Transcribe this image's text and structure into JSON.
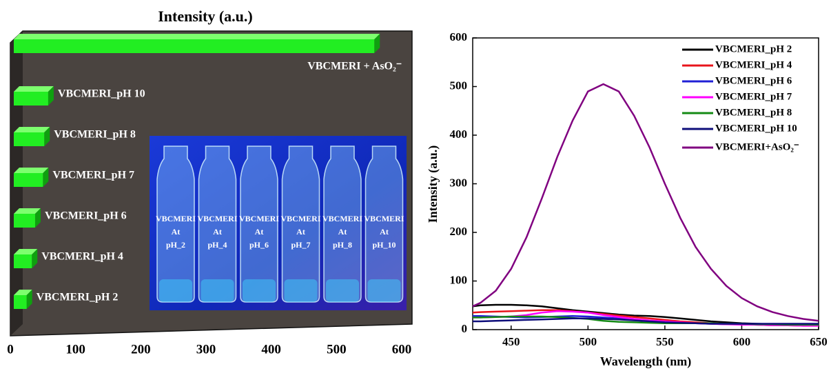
{
  "chart_data": [
    {
      "type": "bar",
      "orientation": "horizontal",
      "title": "Intensity (a.u.)",
      "categories": [
        "VBCMERI_pH 2",
        "VBCMERI_pH 4",
        "VBCMERI_pH 6",
        "VBCMERI_pH 7",
        "VBCMERI_pH 8",
        "VBCMERI_pH 10",
        "VBCMERI + AsO₂⁻"
      ],
      "values": [
        25,
        33,
        38,
        50,
        52,
        58,
        558
      ],
      "color": "#22ee22",
      "xlim": [
        0,
        600
      ],
      "xticks": [
        0,
        100,
        200,
        300,
        400,
        500,
        600
      ],
      "inset_labels": [
        [
          "VBCMERI",
          "At",
          "pH_2"
        ],
        [
          "VBCMERI",
          "At",
          "pH_4"
        ],
        [
          "VBCMERI",
          "At",
          "pH_6"
        ],
        [
          "VBCMERI",
          "At",
          "pH_7"
        ],
        [
          "VBCMERI",
          "At",
          "pH_8"
        ],
        [
          "VBCMERI",
          "At",
          "pH_10"
        ]
      ]
    },
    {
      "type": "line",
      "x_label": "Wavelength (nm)",
      "y_label": "Intensity (a.u.)",
      "x": [
        425,
        430,
        440,
        450,
        460,
        470,
        480,
        490,
        500,
        510,
        520,
        530,
        540,
        550,
        560,
        570,
        580,
        590,
        600,
        610,
        620,
        630,
        640,
        650
      ],
      "xlim": [
        425,
        650
      ],
      "xticks": [
        450,
        500,
        550,
        600,
        650
      ],
      "ylim": [
        0,
        600
      ],
      "yticks": [
        0,
        100,
        200,
        300,
        400,
        500,
        600
      ],
      "legend": "upper right",
      "series": [
        {
          "name": "VBCMERI_pH 2",
          "color": "#000000",
          "values": [
            48,
            50,
            51,
            51,
            50,
            48,
            44,
            40,
            37,
            34,
            31,
            29,
            28,
            26,
            23,
            20,
            17,
            15,
            13,
            12,
            11,
            10,
            9,
            9
          ]
        },
        {
          "name": "VBCMERI_pH 4",
          "color": "#e8141b",
          "values": [
            35,
            36,
            37,
            38,
            39,
            40,
            40,
            38,
            35,
            32,
            29,
            26,
            23,
            20,
            17,
            15,
            13,
            12,
            11,
            10,
            9,
            9,
            8,
            8
          ]
        },
        {
          "name": "VBCMERI_pH 6",
          "color": "#1f1fd6",
          "values": [
            28,
            28,
            27,
            26,
            25,
            26,
            27,
            28,
            27,
            25,
            23,
            20,
            18,
            16,
            14,
            13,
            12,
            11,
            11,
            10,
            10,
            9,
            9,
            9
          ]
        },
        {
          "name": "VBCMERI_pH 7",
          "color": "#ff00ff",
          "values": [
            25,
            25,
            26,
            27,
            30,
            35,
            38,
            37,
            35,
            30,
            26,
            22,
            19,
            17,
            15,
            13,
            12,
            11,
            10,
            10,
            9,
            9,
            8,
            8
          ]
        },
        {
          "name": "VBCMERI_pH 8",
          "color": "#138a13",
          "values": [
            25,
            25,
            26,
            27,
            27,
            27,
            26,
            24,
            22,
            18,
            16,
            15,
            14,
            13,
            13,
            13,
            13,
            12,
            12,
            11,
            11,
            10,
            10,
            10
          ]
        },
        {
          "name": "VBCMERI_pH 10",
          "color": "#0d0d7a",
          "values": [
            17,
            17,
            18,
            19,
            20,
            21,
            22,
            23,
            23,
            22,
            21,
            19,
            17,
            15,
            14,
            13,
            12,
            12,
            12,
            12,
            12,
            12,
            12,
            12
          ]
        },
        {
          "name": "VBCMERI+AsO₂⁻",
          "color": "#800080",
          "values": [
            48,
            55,
            80,
            125,
            190,
            270,
            355,
            430,
            490,
            505,
            490,
            440,
            375,
            300,
            230,
            170,
            125,
            90,
            65,
            48,
            36,
            28,
            22,
            18
          ]
        }
      ]
    }
  ]
}
